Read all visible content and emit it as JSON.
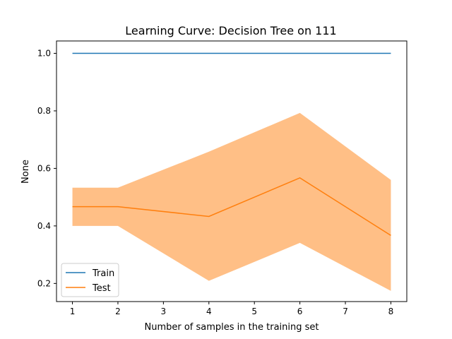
{
  "chart_data": {
    "type": "line",
    "title": "Learning Curve: Decision Tree on 111",
    "xlabel": "Number of samples in the training set",
    "ylabel": "None",
    "xlim": [
      0.65,
      8.35
    ],
    "ylim": [
      0.137,
      1.043
    ],
    "x_ticks": [
      1,
      2,
      3,
      4,
      5,
      6,
      7,
      8
    ],
    "y_ticks": [
      0.2,
      0.4,
      0.6,
      0.8,
      1.0
    ],
    "x_tick_labels": [
      "1",
      "2",
      "3",
      "4",
      "5",
      "6",
      "7",
      "8"
    ],
    "y_tick_labels": [
      "0.2",
      "0.4",
      "0.6",
      "0.8",
      "1.0"
    ],
    "x": [
      1,
      2,
      4,
      6,
      8
    ],
    "grid": false,
    "legend_position": "lower-left",
    "series": [
      {
        "name": "Train",
        "color": "#1f77b4",
        "values": [
          1.0,
          1.0,
          1.0,
          1.0,
          1.0
        ],
        "band_lower": [
          1.0,
          1.0,
          1.0,
          1.0,
          1.0
        ],
        "band_upper": [
          1.0,
          1.0,
          1.0,
          1.0,
          1.0
        ]
      },
      {
        "name": "Test",
        "color": "#ff7f0e",
        "band_color": "#ffbf86",
        "values": [
          0.467,
          0.467,
          0.433,
          0.567,
          0.367
        ],
        "band_lower": [
          0.4,
          0.4,
          0.209,
          0.341,
          0.174
        ],
        "band_upper": [
          0.533,
          0.533,
          0.658,
          0.793,
          0.56
        ]
      }
    ]
  }
}
